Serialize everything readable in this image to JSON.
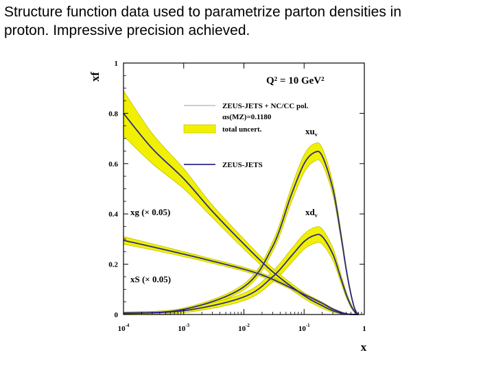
{
  "caption": {
    "line1": "Structure function data used to parametrize parton densities in",
    "line2": "proton.  Impressive precision achieved."
  },
  "colors": {
    "band": "#f0f000",
    "band_edge": "#b8b800",
    "central": "#2a2a8a",
    "axis": "#000000"
  },
  "chart_data": {
    "type": "line",
    "title": "Q² = 10 GeV²",
    "xlabel": "x",
    "ylabel": "xf",
    "xscale": "log",
    "xlim": [
      0.0001,
      1
    ],
    "ylim": [
      0,
      1
    ],
    "x_ticks": [
      {
        "value": 0.0001,
        "label": "10",
        "exp": "-4"
      },
      {
        "value": 0.001,
        "label": "10",
        "exp": "-3"
      },
      {
        "value": 0.01,
        "label": "10",
        "exp": "-2"
      },
      {
        "value": 0.1,
        "label": "10",
        "exp": "-1"
      },
      {
        "value": 1,
        "label": "1",
        "exp": ""
      }
    ],
    "y_ticks": [
      {
        "value": 0,
        "label": "0"
      },
      {
        "value": 0.2,
        "label": "0.2"
      },
      {
        "value": 0.4,
        "label": "0.4"
      },
      {
        "value": 0.6,
        "label": "0.6"
      },
      {
        "value": 0.8,
        "label": "0.8"
      },
      {
        "value": 1,
        "label": "1"
      }
    ],
    "legend": {
      "placement": "top-right",
      "entries": [
        {
          "label": "ZEUS-JETS + NC/CC pol.",
          "style": "thin-line"
        },
        {
          "label": "αs(MZ)=0.1180",
          "style": "none"
        },
        {
          "label": "total uncert.",
          "style": "band"
        },
        {
          "label": "ZEUS-JETS",
          "style": "line"
        }
      ]
    },
    "series": [
      {
        "name": "xuᵥ",
        "label_main": "xu",
        "label_sub": "v",
        "x": [
          0.0001,
          0.001,
          0.01,
          0.03,
          0.06,
          0.1,
          0.15,
          0.2,
          0.3,
          0.4,
          0.5,
          0.6,
          0.7,
          0.8
        ],
        "values": [
          0.006,
          0.02,
          0.11,
          0.27,
          0.47,
          0.6,
          0.645,
          0.63,
          0.5,
          0.33,
          0.18,
          0.08,
          0.02,
          0.0
        ],
        "errors": [
          0.004,
          0.006,
          0.012,
          0.02,
          0.03,
          0.035,
          0.035,
          0.032,
          0.025,
          0.018,
          0.012,
          0.008,
          0.004,
          0.0
        ]
      },
      {
        "name": "xdᵥ",
        "label_main": "xd",
        "label_sub": "v",
        "x": [
          0.0001,
          0.001,
          0.01,
          0.03,
          0.06,
          0.1,
          0.15,
          0.2,
          0.3,
          0.4,
          0.5,
          0.6,
          0.7,
          0.8
        ],
        "values": [
          0.004,
          0.015,
          0.07,
          0.15,
          0.23,
          0.29,
          0.315,
          0.31,
          0.24,
          0.15,
          0.08,
          0.035,
          0.01,
          0.0
        ],
        "errors": [
          0.004,
          0.008,
          0.015,
          0.022,
          0.028,
          0.03,
          0.032,
          0.03,
          0.025,
          0.018,
          0.012,
          0.008,
          0.004,
          0.0
        ]
      },
      {
        "name": "xg (× 0.05)",
        "label_main": "xg (× 0.05)",
        "label_sub": "",
        "x": [
          0.0001,
          0.0003,
          0.001,
          0.003,
          0.01,
          0.03,
          0.1,
          0.2,
          0.3,
          0.5,
          0.8
        ],
        "values": [
          0.8,
          0.66,
          0.54,
          0.41,
          0.28,
          0.17,
          0.075,
          0.035,
          0.015,
          0.002,
          0.0
        ],
        "errors": [
          0.09,
          0.06,
          0.04,
          0.025,
          0.02,
          0.015,
          0.012,
          0.01,
          0.006,
          0.002,
          0.0
        ]
      },
      {
        "name": "xS (× 0.05)",
        "label_main": "xS (× 0.05)",
        "label_sub": "",
        "x": [
          0.0001,
          0.001,
          0.01,
          0.03,
          0.1,
          0.2,
          0.3,
          0.5,
          0.8
        ],
        "values": [
          0.295,
          0.24,
          0.18,
          0.14,
          0.08,
          0.045,
          0.022,
          0.003,
          0.0
        ],
        "errors": [
          0.015,
          0.01,
          0.008,
          0.007,
          0.006,
          0.004,
          0.003,
          0.001,
          0.0
        ]
      }
    ]
  }
}
